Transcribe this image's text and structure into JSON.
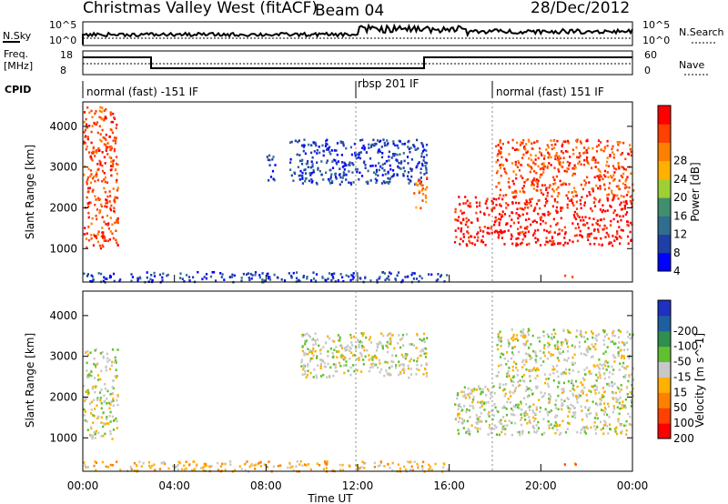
{
  "header": {
    "title": "Christmas Valley West (fitACF)",
    "beam": "Beam 04",
    "date": "28/Dec/2012"
  },
  "top_panels": {
    "nsky_label": "N.Sky",
    "nsky_ticks": [
      "10^5",
      "10^0"
    ],
    "nsearch_label": "N.Search",
    "nsearch_ticks": [
      "10^5",
      "10^0"
    ],
    "freq_label_1": "Freq.",
    "freq_label_2": "[MHz]",
    "freq_ticks": [
      "18",
      "8"
    ],
    "nave_label": "Nave",
    "nave_ticks": [
      "60",
      "0"
    ],
    "cpid_label": "CPID",
    "cpid_segments": [
      "normal (fast) -151 IF",
      "rbsp 201 IF",
      "normal (fast) 151 IF"
    ]
  },
  "colors": {
    "power": [
      "#0000ff",
      "#1f3fa8",
      "#2f6e8f",
      "#3f8f6f",
      "#9fd033",
      "#ffb000",
      "#ff8000",
      "#ff4000",
      "#ff0000"
    ],
    "velocity": [
      "#2030c0",
      "#1f5fa0",
      "#2f8f4f",
      "#60c030",
      "#c8c8c8",
      "#ffb000",
      "#ff8000",
      "#ff4000",
      "#ff0000"
    ],
    "ground": "#bdbdbd"
  },
  "chart_data": [
    {
      "type": "heatmap",
      "name": "Power",
      "xlabel": "",
      "ylabel": "Slant Range [km]",
      "xlim": [
        "00:00",
        "24:00"
      ],
      "ylim": [
        180,
        4600
      ],
      "yticks": [
        1000,
        2000,
        3000,
        4000
      ],
      "colorbar": {
        "label": "Power [dB]",
        "ticks": [
          4,
          8,
          12,
          16,
          20,
          24,
          28
        ]
      },
      "echo_regions": [
        {
          "t0": 0.0,
          "t1": 1.5,
          "r0": 1000,
          "r1": 4500,
          "level": 7
        },
        {
          "t0": 8.0,
          "t1": 8.4,
          "r0": 2700,
          "r1": 3400,
          "level": 1
        },
        {
          "t0": 9.0,
          "t1": 15.0,
          "r0": 2600,
          "r1": 3700,
          "level": 1
        },
        {
          "t0": 14.4,
          "t1": 15.0,
          "r0": 2000,
          "r1": 2800,
          "level": 6
        },
        {
          "t0": 16.2,
          "t1": 24.0,
          "r0": 1100,
          "r1": 2300,
          "level": 8
        },
        {
          "t0": 18.0,
          "t1": 24.0,
          "r0": 2300,
          "r1": 3700,
          "level": 7
        },
        {
          "t0": 0.0,
          "t1": 16.0,
          "r0": 200,
          "r1": 450,
          "level": 1
        },
        {
          "t0": 21.0,
          "t1": 21.5,
          "r0": 300,
          "r1": 400,
          "level": 7
        }
      ]
    },
    {
      "type": "heatmap",
      "name": "Velocity",
      "xlabel": "Time UT",
      "ylabel": "Slant Range [km]",
      "xlim": [
        "00:00",
        "24:00"
      ],
      "xticks": [
        "00:00",
        "04:00",
        "08:00",
        "12:00",
        "16:00",
        "20:00",
        "00:00"
      ],
      "ylim": [
        180,
        4600
      ],
      "yticks": [
        1000,
        2000,
        3000,
        4000
      ],
      "colorbar": {
        "label": "Velocity [m s^-1]",
        "ticks": [
          200,
          100,
          50,
          15,
          -15,
          -50,
          -100,
          -200
        ]
      },
      "echo_regions": [
        {
          "t0": 0.0,
          "t1": 1.5,
          "r0": 1000,
          "r1": 3200,
          "level": 4
        },
        {
          "t0": 9.5,
          "t1": 15.0,
          "r0": 2500,
          "r1": 3600,
          "level": 4
        },
        {
          "t0": 16.2,
          "t1": 24.0,
          "r0": 1100,
          "r1": 2300,
          "level": 4
        },
        {
          "t0": 18.0,
          "t1": 24.0,
          "r0": 2300,
          "r1": 3700,
          "level": 4
        },
        {
          "t0": 0.0,
          "t1": 16.0,
          "r0": 200,
          "r1": 450,
          "level": 5
        },
        {
          "t0": 21.0,
          "t1": 21.5,
          "r0": 300,
          "r1": 400,
          "level": 6
        }
      ]
    }
  ]
}
